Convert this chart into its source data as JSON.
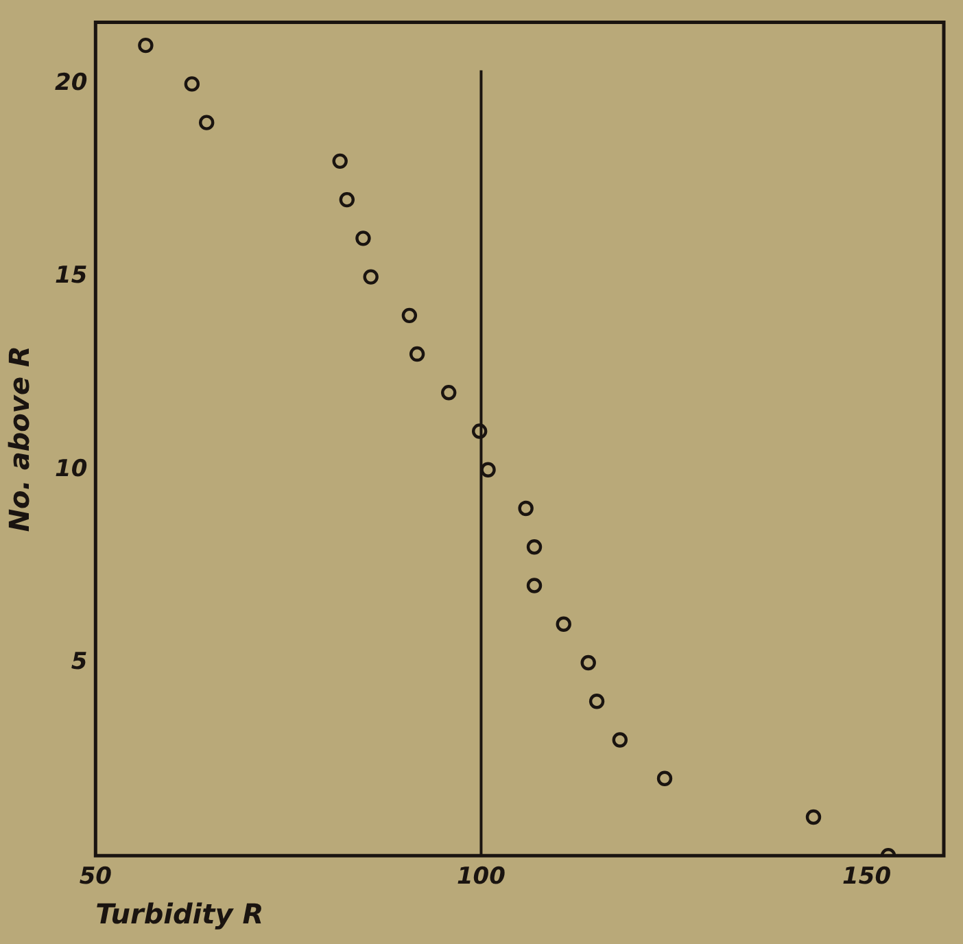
{
  "chart_data": {
    "type": "scatter",
    "xlabel": "Turbidity R",
    "ylabel": "No. above R",
    "x": [
      56.5,
      62.5,
      64.4,
      81.7,
      82.6,
      84.7,
      85.7,
      90.7,
      91.7,
      95.8,
      99.8,
      100.9,
      105.8,
      106.9,
      106.9,
      110.7,
      113.9,
      115.0,
      118.0,
      123.8,
      143.1,
      152.8
    ],
    "series": [
      {
        "color": "#1a1410",
        "values": [
          21,
          20,
          19,
          18,
          17,
          16,
          15,
          14,
          13,
          12,
          11,
          10,
          9,
          8,
          7,
          6,
          5,
          4,
          3,
          2,
          1,
          0
        ]
      }
    ],
    "xlim": [
      50,
      160
    ],
    "xticks": [
      50,
      100,
      150
    ],
    "ylim": [
      0,
      21.6
    ],
    "yticks": [
      5,
      10,
      15,
      20
    ],
    "ref_lines": [
      {
        "axis": "x",
        "value": 100,
        "color": "#1a1410"
      }
    ],
    "marker": "circle",
    "grid": false,
    "legend": false
  }
}
